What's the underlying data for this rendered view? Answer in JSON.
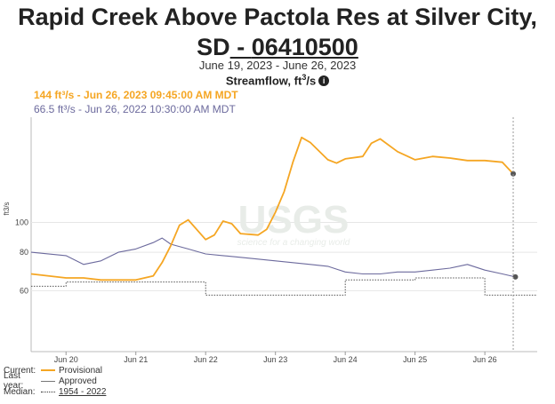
{
  "title": {
    "prefix": "Rapid Creek Above Pactola Res at Silver City,",
    "state": "SD",
    "separator": " - ",
    "site_id": "06410500"
  },
  "date_range": "June 19, 2023 - June 26, 2023",
  "parameter": "Streamflow, ft",
  "parameter_sup": "3",
  "parameter_suffix": "/s",
  "tooltip": {
    "current": "144 ft³/s - Jun 26, 2023 09:45:00 AM MDT",
    "last_year": "66.5 ft³/s - Jun 26, 2022 10:30:00 AM MDT"
  },
  "legend": {
    "current_label": "Current:",
    "current_text": "Provisional",
    "last_label": "Last year:",
    "last_text": "Approved",
    "median_label": "Median:",
    "median_text": "1954 - 2022"
  },
  "watermark": "USGS",
  "watermark_tagline": "science for a changing world",
  "colors": {
    "current": "#f5a623",
    "last_year": "#6c6a9d",
    "median": "#555555"
  },
  "chart_data": {
    "type": "line",
    "title": "Streamflow, ft³/s",
    "ylabel": "ft3/s",
    "y_scale": "log",
    "ylim": [
      38,
      220
    ],
    "xlim": [
      "Jun 19 12:00",
      "Jun 26 18:00"
    ],
    "yticks": [
      60,
      80,
      100
    ],
    "xticks": [
      {
        "label": "Jun 20",
        "day": 20
      },
      {
        "label": "Jun 21",
        "day": 21
      },
      {
        "label": "Jun 22",
        "day": 22
      },
      {
        "label": "Jun 23",
        "day": 23
      },
      {
        "label": "Jun 24",
        "day": 24
      },
      {
        "label": "Jun 25",
        "day": 25
      },
      {
        "label": "Jun 26",
        "day": 26
      }
    ],
    "grid": true,
    "series": [
      {
        "name": "Provisional",
        "x": [
          "Jun 19 12:00",
          "Jun 20 00:00",
          "Jun 20 06:00",
          "Jun 20 12:00",
          "Jun 20 18:00",
          "Jun 21 00:00",
          "Jun 21 06:00",
          "Jun 21 09:00",
          "Jun 21 12:00",
          "Jun 21 15:00",
          "Jun 21 18:00",
          "Jun 22 00:00",
          "Jun 22 03:00",
          "Jun 22 06:00",
          "Jun 22 09:00",
          "Jun 22 12:00",
          "Jun 22 18:00",
          "Jun 22 21:00",
          "Jun 23 00:00",
          "Jun 23 03:00",
          "Jun 23 06:00",
          "Jun 23 09:00",
          "Jun 23 12:00",
          "Jun 23 18:00",
          "Jun 23 21:00",
          "Jun 24 00:00",
          "Jun 24 06:00",
          "Jun 24 09:00",
          "Jun 24 12:00",
          "Jun 24 18:00",
          "Jun 25 00:00",
          "Jun 25 06:00",
          "Jun 25 12:00",
          "Jun 25 18:00",
          "Jun 26 00:00",
          "Jun 26 06:00",
          "Jun 26 09:45"
        ],
        "values": [
          68,
          66,
          66,
          65,
          65,
          65,
          67,
          74,
          84,
          98,
          102,
          88,
          91,
          101,
          99,
          92,
          91,
          95,
          108,
          126,
          157,
          189,
          182,
          160,
          156,
          161,
          164,
          181,
          187,
          170,
          160,
          164,
          162,
          159,
          159,
          157,
          144
        ]
      },
      {
        "name": "Approved",
        "x": [
          "Jun 19 12:00",
          "Jun 20 00:00",
          "Jun 20 06:00",
          "Jun 20 12:00",
          "Jun 20 18:00",
          "Jun 21 00:00",
          "Jun 21 06:00",
          "Jun 21 09:00",
          "Jun 21 12:00",
          "Jun 21 18:00",
          "Jun 22 00:00",
          "Jun 22 06:00",
          "Jun 22 12:00",
          "Jun 22 18:00",
          "Jun 23 00:00",
          "Jun 23 06:00",
          "Jun 23 12:00",
          "Jun 23 18:00",
          "Jun 24 00:00",
          "Jun 24 06:00",
          "Jun 24 12:00",
          "Jun 24 18:00",
          "Jun 25 00:00",
          "Jun 25 06:00",
          "Jun 25 12:00",
          "Jun 25 18:00",
          "Jun 26 00:00",
          "Jun 26 06:00",
          "Jun 26 10:30"
        ],
        "values": [
          80,
          78,
          73,
          75,
          80,
          82,
          86,
          89,
          85,
          82,
          79,
          78,
          77,
          76,
          75,
          74,
          73,
          72,
          69,
          68,
          68,
          69,
          69,
          70,
          71,
          73,
          70,
          68,
          66.5
        ]
      },
      {
        "name": "1954 - 2022",
        "x": [
          "Jun 19 12:00",
          "Jun 20 00:00",
          "Jun 20 00:01",
          "Jun 22 00:00",
          "Jun 22 00:01",
          "Jun 24 00:00",
          "Jun 24 00:01",
          "Jun 25 00:00",
          "Jun 25 00:01",
          "Jun 26 00:00",
          "Jun 26 00:01",
          "Jun 26 18:00"
        ],
        "values": [
          62,
          62,
          64,
          64,
          58,
          58,
          65,
          65,
          66,
          66,
          58,
          58
        ]
      }
    ]
  }
}
